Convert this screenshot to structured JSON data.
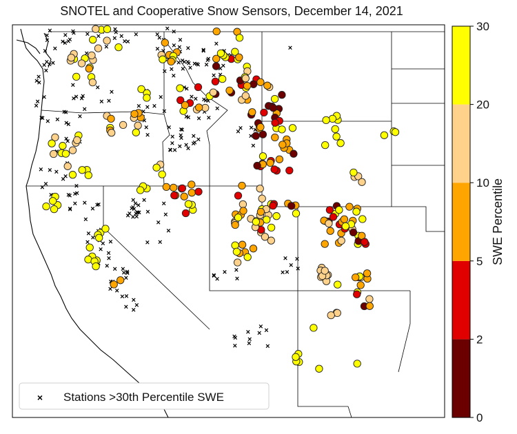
{
  "title": "SNOTEL and Cooperative Snow Sensors, December 14, 2021",
  "colorbar": {
    "label": "SWE Percentile",
    "ticks": [
      "0",
      "2",
      "5",
      "10",
      "20",
      "30"
    ],
    "bins": [
      {
        "from": 0,
        "to": 2,
        "color": "#6b0000"
      },
      {
        "from": 2,
        "to": 5,
        "color": "#e00000"
      },
      {
        "from": 5,
        "to": 10,
        "color": "#ffa500"
      },
      {
        "from": 10,
        "to": 20,
        "color": "#ffd28c"
      },
      {
        "from": 20,
        "to": 30,
        "color": "#ffff00"
      }
    ]
  },
  "legend": {
    "label": "Stations >30th Percentile SWE",
    "placement": "lower-left"
  },
  "map": {
    "region": "Western United States",
    "marker_types": [
      "circle colored by SWE percentile bin",
      "black x for stations above 30th percentile"
    ]
  }
}
